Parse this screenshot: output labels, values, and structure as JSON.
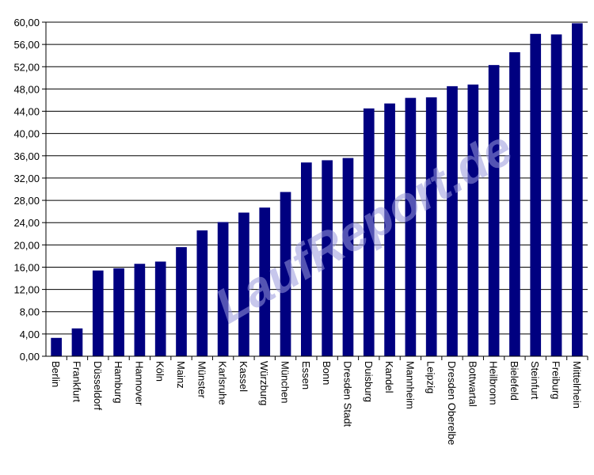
{
  "chart_data": {
    "type": "bar",
    "title": "",
    "xlabel": "",
    "ylabel": "",
    "ylim": [
      0,
      60
    ],
    "y_step": 4,
    "grid": true,
    "bar_color": "#000080",
    "categories": [
      "Berlin",
      "Frankfurt",
      "Düsseldorf",
      "Hamburg",
      "Hannover",
      "Köln",
      "Mainz",
      "Münster",
      "Karlsruhe",
      "Kassel",
      "Würzburg",
      "München",
      "Essen",
      "Bonn",
      "Dresden Stadt",
      "Duisburg",
      "Kandel",
      "Mannheim",
      "Leipzig",
      "Dresden Oberelbe",
      "Bottwartal",
      "Heilbronn",
      "Bielefeld",
      "Steinfurt",
      "Freiburg",
      "Mittelrhein"
    ],
    "values": [
      3.3,
      5.0,
      15.4,
      15.8,
      16.6,
      17.0,
      19.6,
      22.6,
      24.1,
      25.8,
      26.7,
      29.5,
      34.8,
      35.2,
      35.6,
      44.5,
      45.4,
      46.4,
      46.5,
      48.5,
      48.8,
      52.3,
      54.6,
      57.9,
      57.8,
      59.8
    ],
    "tick_labels": [
      "0,00",
      "4,00",
      "8,00",
      "12,00",
      "16,00",
      "20,00",
      "24,00",
      "28,00",
      "32,00",
      "36,00",
      "40,00",
      "44,00",
      "48,00",
      "52,00",
      "56,00",
      "60,00"
    ]
  },
  "watermark": {
    "text": "LaufReport.de",
    "color": "#9999dd"
  }
}
